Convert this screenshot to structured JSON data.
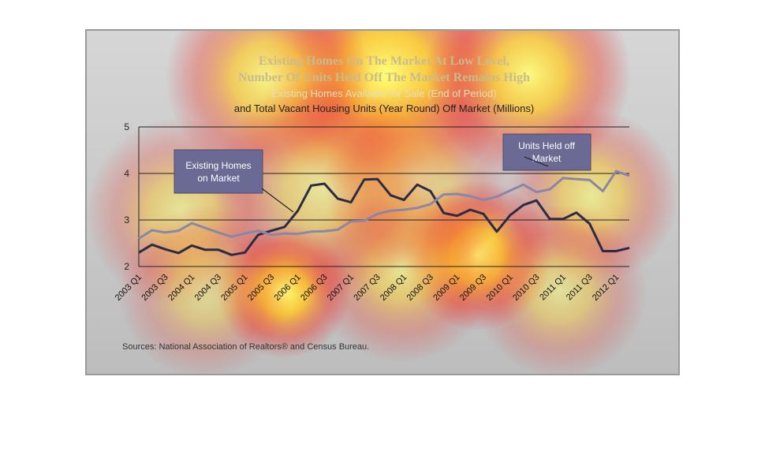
{
  "chart_data": {
    "type": "line",
    "title_line1": "Existing Homes On The Market At Low Level,",
    "title_line2": "Number Of Units Held Off The Market Remains High",
    "subtitle_line1": "Existing Homes Available for Sale (End of Period)",
    "subtitle_line2": "and Total Vacant Housing Units (Year Round) Off Market (Millions)",
    "ylim": [
      2,
      5
    ],
    "yticks": [
      "5",
      "4",
      "3",
      "2"
    ],
    "grid": true,
    "x_labels": [
      "2003 Q1",
      "2003 Q3",
      "2004 Q1",
      "2004 Q3",
      "2005 Q1",
      "2005 Q3",
      "2006 Q1",
      "2006 Q3",
      "2007 Q1",
      "2007 Q3",
      "2008 Q1",
      "2008 Q3",
      "2009 Q1",
      "2009 Q3",
      "2010 Q1",
      "2010 Q3",
      "2011 Q1",
      "2011 Q3",
      "2012 Q1"
    ],
    "x": [
      "2003 Q1",
      "2003 Q2",
      "2003 Q3",
      "2003 Q4",
      "2004 Q1",
      "2004 Q2",
      "2004 Q3",
      "2004 Q4",
      "2005 Q1",
      "2005 Q2",
      "2005 Q3",
      "2005 Q4",
      "2006 Q1",
      "2006 Q2",
      "2006 Q3",
      "2006 Q4",
      "2007 Q1",
      "2007 Q2",
      "2007 Q3",
      "2007 Q4",
      "2008 Q1",
      "2008 Q2",
      "2008 Q3",
      "2008 Q4",
      "2009 Q1",
      "2009 Q2",
      "2009 Q3",
      "2009 Q4",
      "2010 Q1",
      "2010 Q2",
      "2010 Q3",
      "2010 Q4",
      "2011 Q1",
      "2011 Q2",
      "2011 Q3",
      "2011 Q4",
      "2012 Q1",
      "2012 Q2"
    ],
    "series": [
      {
        "name": "Existing Homes on Market",
        "color": "#2b2b45",
        "values": [
          2.3,
          2.47,
          2.37,
          2.29,
          2.45,
          2.36,
          2.36,
          2.25,
          2.3,
          2.68,
          2.77,
          2.85,
          3.2,
          3.74,
          3.78,
          3.46,
          3.38,
          3.87,
          3.88,
          3.53,
          3.43,
          3.76,
          3.62,
          3.15,
          3.09,
          3.22,
          3.13,
          2.75,
          3.1,
          3.32,
          3.42,
          3.02,
          3.02,
          3.16,
          2.92,
          2.33,
          2.33,
          2.4
        ]
      },
      {
        "name": "Units Held off Market",
        "color": "#8a86a8",
        "values": [
          2.6,
          2.78,
          2.73,
          2.77,
          2.93,
          2.83,
          2.73,
          2.64,
          2.71,
          2.77,
          2.68,
          2.71,
          2.7,
          2.75,
          2.76,
          2.79,
          2.97,
          2.98,
          3.13,
          3.2,
          3.22,
          3.26,
          3.34,
          3.55,
          3.56,
          3.51,
          3.43,
          3.5,
          3.63,
          3.76,
          3.6,
          3.66,
          3.9,
          3.88,
          3.86,
          3.62,
          4.05,
          3.95
        ]
      }
    ],
    "annotations": [
      {
        "text_line1": "Existing Homes",
        "text_line2": "on Market"
      },
      {
        "text_line1": "Units Held off",
        "text_line2": "Market"
      }
    ],
    "source": "Sources: National Association of Realtors® and Census Bureau."
  }
}
